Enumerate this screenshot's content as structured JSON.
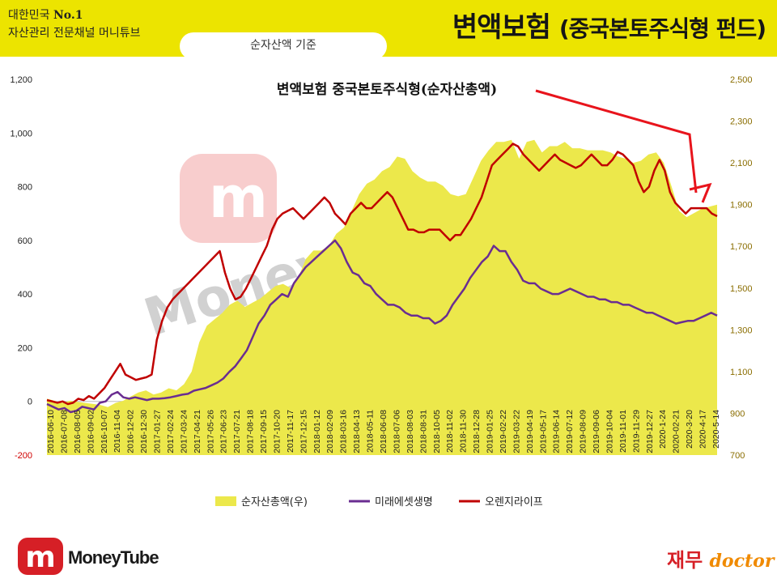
{
  "header": {
    "brand_line1_prefix": "대한민국 ",
    "brand_line1_bold": "No.1",
    "brand_line2": "자산관리 전문채널 머니튜브",
    "title_main": "변액보험 ",
    "title_paren": "(중국본토주식형 펀드)",
    "basis_label": "순자산액 기준"
  },
  "watermark": {
    "text": "Money Tube"
  },
  "footer": {
    "brand": "MoneyTube",
    "doctor_korean": "재무",
    "doctor_english": "doctor"
  },
  "colors": {
    "band": "#ece400",
    "area": "#ece84b",
    "mirae": "#6a2d91",
    "orange": "#c00000",
    "arrow": "#e8141c",
    "right_axis_text": "#8a6d00"
  },
  "chart_data": {
    "type": "line",
    "title": "변액보험 중국본토주식형(순자산총액)",
    "left_axis": {
      "range": [
        -200,
        1200
      ],
      "ticks": [
        "-200",
        "0",
        "200",
        "400",
        "600",
        "800",
        "1,000",
        "1,200"
      ]
    },
    "right_axis": {
      "range": [
        700,
        2500
      ],
      "ticks": [
        "700",
        "900",
        "1,100",
        "1,300",
        "1,500",
        "1,700",
        "1,900",
        "2,100",
        "2,300",
        "2,500"
      ]
    },
    "x_tick_labels": [
      "2016-06-10",
      "2016-07-08",
      "2016-08-05",
      "2016-09-02",
      "2016-10-07",
      "2016-11-04",
      "2016-12-02",
      "2016-12-30",
      "2017-01-27",
      "2017-02-24",
      "2017-03-24",
      "2017-04-21",
      "2017-05-26",
      "2017-06-23",
      "2017-07-21",
      "2017-08-18",
      "2017-09-15",
      "2017-10-20",
      "2017-11-17",
      "2017-12-15",
      "2018-01-12",
      "2018-02-09",
      "2018-03-16",
      "2018-04-13",
      "2018-05-11",
      "2018-06-08",
      "2018-07-06",
      "2018-08-03",
      "2018-08-31",
      "2018-10-05",
      "2018-11-02",
      "2018-11-30",
      "2018-12-28",
      "2019-01-25",
      "2019-02-22",
      "2019-03-22",
      "2019-04-19",
      "2019-05-17",
      "2019-06-14",
      "2019-07-12",
      "2019-08-09",
      "2019-09-06",
      "2019-10-04",
      "2019-11-01",
      "2019-11-29",
      "2019-12-27",
      "2020-1-24",
      "2020-02-21",
      "2020-3-20",
      "2020-4-17",
      "2020-5-14"
    ],
    "series": [
      {
        "name": "순자산총액(우)",
        "type": "area",
        "axis": "right",
        "values": [
          970,
          960,
          950,
          960,
          955,
          950,
          945,
          940,
          930,
          950,
          960,
          980,
          1000,
          1010,
          990,
          1000,
          1020,
          1010,
          1040,
          1100,
          1240,
          1320,
          1350,
          1380,
          1420,
          1440,
          1410,
          1430,
          1450,
          1480,
          1510,
          1520,
          1500,
          1550,
          1640,
          1680,
          1680,
          1700,
          1760,
          1790,
          1870,
          1950,
          2000,
          2020,
          2060,
          2080,
          2130,
          2120,
          2060,
          2030,
          2010,
          2010,
          1990,
          1950,
          1940,
          1950,
          2030,
          2110,
          2160,
          2200,
          2200,
          2210,
          2120,
          2200,
          2210,
          2150,
          2180,
          2180,
          2200,
          2170,
          2170,
          2160,
          2160,
          2160,
          2150,
          2130,
          2120,
          2100,
          2110,
          2140,
          2150,
          2100,
          1990,
          1870,
          1840,
          1860,
          1880,
          1890,
          1900
        ]
      },
      {
        "name": "미래에셋생명",
        "type": "line",
        "axis": "left",
        "values": [
          -10,
          -20,
          -30,
          -25,
          -40,
          -35,
          -20,
          -25,
          -30,
          -5,
          0,
          25,
          35,
          15,
          10,
          15,
          10,
          5,
          10,
          10,
          12,
          15,
          20,
          25,
          28,
          40,
          45,
          50,
          60,
          70,
          85,
          110,
          130,
          160,
          190,
          240,
          290,
          320,
          360,
          380,
          400,
          390,
          440,
          470,
          500,
          520,
          540,
          560,
          580,
          600,
          570,
          520,
          480,
          470,
          440,
          430,
          400,
          380,
          360,
          360,
          350,
          330,
          320,
          320,
          310,
          310,
          290,
          300,
          320,
          360,
          390,
          420,
          460,
          490,
          520,
          540,
          580,
          560,
          560,
          520,
          490,
          450,
          440,
          440,
          420,
          410,
          400,
          400,
          410,
          420,
          410,
          400,
          390,
          390,
          380,
          380,
          370,
          370,
          360,
          360,
          350,
          340,
          330,
          330,
          320,
          310,
          300,
          290,
          295,
          300,
          300,
          310,
          320,
          330,
          320
        ]
      },
      {
        "name": "오렌지라이프",
        "type": "line",
        "axis": "left",
        "values": [
          5,
          0,
          -5,
          0,
          -10,
          -5,
          10,
          5,
          20,
          10,
          30,
          50,
          80,
          110,
          140,
          100,
          90,
          80,
          85,
          90,
          100,
          230,
          300,
          350,
          380,
          400,
          420,
          440,
          460,
          480,
          500,
          520,
          540,
          560,
          480,
          420,
          380,
          390,
          420,
          460,
          500,
          540,
          580,
          640,
          680,
          700,
          710,
          720,
          700,
          680,
          700,
          720,
          740,
          760,
          740,
          700,
          680,
          660,
          700,
          720,
          740,
          720,
          720,
          740,
          760,
          780,
          760,
          720,
          680,
          640,
          640,
          630,
          630,
          640,
          640,
          640,
          620,
          600,
          620,
          620,
          650,
          680,
          720,
          760,
          820,
          880,
          900,
          920,
          940,
          960,
          950,
          920,
          900,
          880,
          860,
          880,
          900,
          920,
          900,
          890,
          880,
          870,
          880,
          900,
          920,
          900,
          880,
          880,
          900,
          930,
          920,
          900,
          880,
          820,
          780,
          800,
          860,
          900,
          860,
          780,
          740,
          720,
          700,
          720,
          720,
          720,
          720,
          700,
          690
        ]
      }
    ],
    "legend": "bottom"
  }
}
